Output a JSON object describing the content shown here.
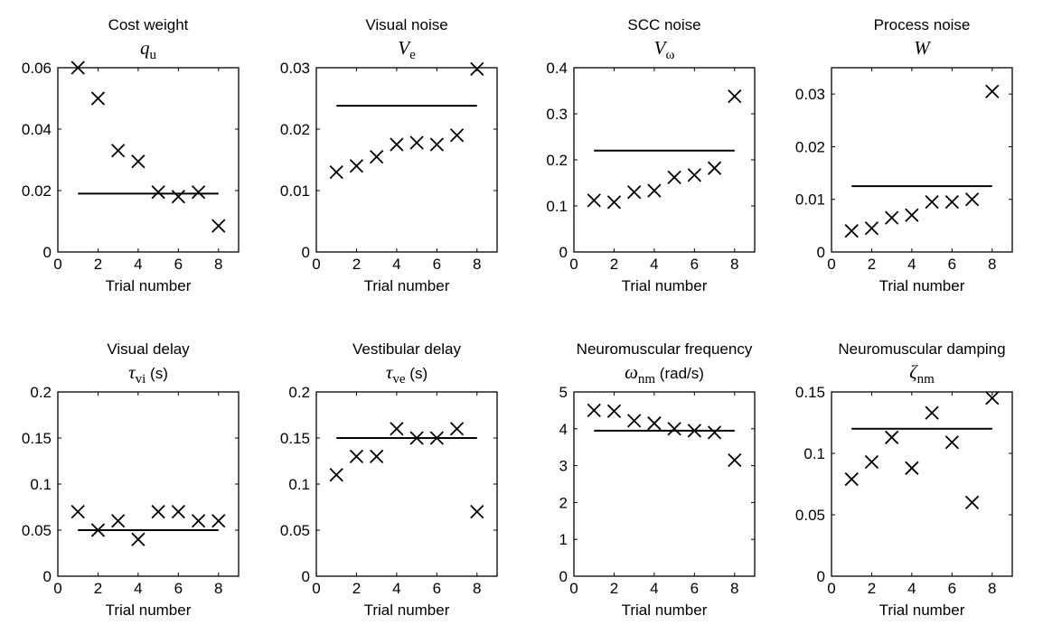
{
  "chart_data": [
    {
      "type": "scatter",
      "title": "Cost weight",
      "symbol": {
        "main": "q",
        "sub": "u",
        "unit": ""
      },
      "xlabel": "Trial number",
      "xlim": [
        0,
        9
      ],
      "ylim": [
        0,
        0.06
      ],
      "xticks": [
        0,
        2,
        4,
        6,
        8
      ],
      "yticks": [
        0,
        0.02,
        0.04,
        0.06
      ],
      "ytick_labels": [
        "0",
        "0.02",
        "0.04",
        "0.06"
      ],
      "x": [
        1,
        2,
        3,
        4,
        5,
        6,
        7,
        8
      ],
      "y": [
        0.06,
        0.05,
        0.033,
        0.0295,
        0.0195,
        0.018,
        0.0195,
        0.0085
      ],
      "reference": {
        "x": [
          1,
          8
        ],
        "y": 0.019
      }
    },
    {
      "type": "scatter",
      "title": "Visual noise",
      "symbol": {
        "main": "V",
        "sub": "e",
        "unit": ""
      },
      "xlabel": "Trial number",
      "xlim": [
        0,
        9
      ],
      "ylim": [
        0,
        0.03
      ],
      "xticks": [
        0,
        2,
        4,
        6,
        8
      ],
      "yticks": [
        0,
        0.01,
        0.02,
        0.03
      ],
      "ytick_labels": [
        "0",
        "0.01",
        "0.02",
        "0.03"
      ],
      "x": [
        1,
        2,
        3,
        4,
        5,
        6,
        7,
        8
      ],
      "y": [
        0.013,
        0.014,
        0.0155,
        0.0175,
        0.0178,
        0.0175,
        0.019,
        0.0298
      ],
      "reference": {
        "x": [
          1,
          8
        ],
        "y": 0.0238
      }
    },
    {
      "type": "scatter",
      "title": "SCC noise",
      "symbol": {
        "main": "V",
        "sub": "ω",
        "unit": ""
      },
      "xlabel": "Trial number",
      "xlim": [
        0,
        9
      ],
      "ylim": [
        0,
        0.4
      ],
      "xticks": [
        0,
        2,
        4,
        6,
        8
      ],
      "yticks": [
        0,
        0.1,
        0.2,
        0.3,
        0.4
      ],
      "ytick_labels": [
        "0",
        "0.1",
        "0.2",
        "0.3",
        "0.4"
      ],
      "x": [
        1,
        2,
        3,
        4,
        5,
        6,
        7,
        8
      ],
      "y": [
        0.112,
        0.108,
        0.13,
        0.133,
        0.162,
        0.167,
        0.182,
        0.338
      ],
      "reference": {
        "x": [
          1,
          8
        ],
        "y": 0.22
      }
    },
    {
      "type": "scatter",
      "title": "Process noise",
      "symbol": {
        "main": "W",
        "sub": "",
        "unit": ""
      },
      "xlabel": "Trial number",
      "xlim": [
        0,
        9
      ],
      "ylim": [
        0,
        0.035
      ],
      "xticks": [
        0,
        2,
        4,
        6,
        8
      ],
      "yticks": [
        0,
        0.01,
        0.02,
        0.03
      ],
      "ytick_labels": [
        "0",
        "0.01",
        "0.02",
        "0.03"
      ],
      "x": [
        1,
        2,
        3,
        4,
        5,
        6,
        7,
        8
      ],
      "y": [
        0.004,
        0.0045,
        0.0065,
        0.007,
        0.0095,
        0.0095,
        0.01,
        0.0305
      ],
      "reference": {
        "x": [
          1,
          8
        ],
        "y": 0.0125
      }
    },
    {
      "type": "scatter",
      "title": "Visual delay",
      "symbol": {
        "main": "τ",
        "sub": "vi",
        "unit": "(s)"
      },
      "xlabel": "Trial number",
      "xlim": [
        0,
        9
      ],
      "ylim": [
        0,
        0.2
      ],
      "xticks": [
        0,
        2,
        4,
        6,
        8
      ],
      "yticks": [
        0,
        0.05,
        0.1,
        0.15,
        0.2
      ],
      "ytick_labels": [
        "0",
        "0.05",
        "0.1",
        "0.15",
        "0.2"
      ],
      "x": [
        1,
        2,
        3,
        4,
        5,
        6,
        7,
        8
      ],
      "y": [
        0.07,
        0.05,
        0.06,
        0.04,
        0.07,
        0.07,
        0.06,
        0.06
      ],
      "reference": {
        "x": [
          1,
          8
        ],
        "y": 0.05
      }
    },
    {
      "type": "scatter",
      "title": "Vestibular delay",
      "symbol": {
        "main": "τ",
        "sub": "ve",
        "unit": "(s)"
      },
      "xlabel": "Trial number",
      "xlim": [
        0,
        9
      ],
      "ylim": [
        0,
        0.2
      ],
      "xticks": [
        0,
        2,
        4,
        6,
        8
      ],
      "yticks": [
        0,
        0.05,
        0.1,
        0.15,
        0.2
      ],
      "ytick_labels": [
        "0",
        "0.05",
        "0.1",
        "0.15",
        "0.2"
      ],
      "x": [
        1,
        2,
        3,
        4,
        5,
        6,
        7,
        8
      ],
      "y": [
        0.11,
        0.13,
        0.13,
        0.16,
        0.15,
        0.15,
        0.16,
        0.07
      ],
      "reference": {
        "x": [
          1,
          8
        ],
        "y": 0.15
      }
    },
    {
      "type": "scatter",
      "title": "Neuromuscular frequency",
      "symbol": {
        "main": "ω",
        "sub": "nm",
        "unit": "(rad/s)"
      },
      "xlabel": "Trial number",
      "xlim": [
        0,
        9
      ],
      "ylim": [
        0,
        5
      ],
      "xticks": [
        0,
        2,
        4,
        6,
        8
      ],
      "yticks": [
        0,
        1,
        2,
        3,
        4,
        5
      ],
      "ytick_labels": [
        "0",
        "1",
        "2",
        "3",
        "4",
        "5"
      ],
      "x": [
        1,
        2,
        3,
        4,
        5,
        6,
        7,
        8
      ],
      "y": [
        4.5,
        4.48,
        4.22,
        4.15,
        4.0,
        3.95,
        3.9,
        3.15
      ],
      "reference": {
        "x": [
          1,
          8
        ],
        "y": 3.95
      }
    },
    {
      "type": "scatter",
      "title": "Neuromuscular damping",
      "symbol": {
        "main": "ζ",
        "sub": "nm",
        "unit": ""
      },
      "xlabel": "Trial number",
      "xlim": [
        0,
        9
      ],
      "ylim": [
        0,
        0.15
      ],
      "xticks": [
        0,
        2,
        4,
        6,
        8
      ],
      "yticks": [
        0,
        0.05,
        0.1,
        0.15
      ],
      "ytick_labels": [
        "0",
        "0.05",
        "0.1",
        "0.15"
      ],
      "x": [
        1,
        2,
        3,
        4,
        5,
        6,
        7,
        8
      ],
      "y": [
        0.079,
        0.093,
        0.113,
        0.088,
        0.133,
        0.109,
        0.06,
        0.145
      ],
      "reference": {
        "x": [
          1,
          8
        ],
        "y": 0.12
      }
    }
  ]
}
